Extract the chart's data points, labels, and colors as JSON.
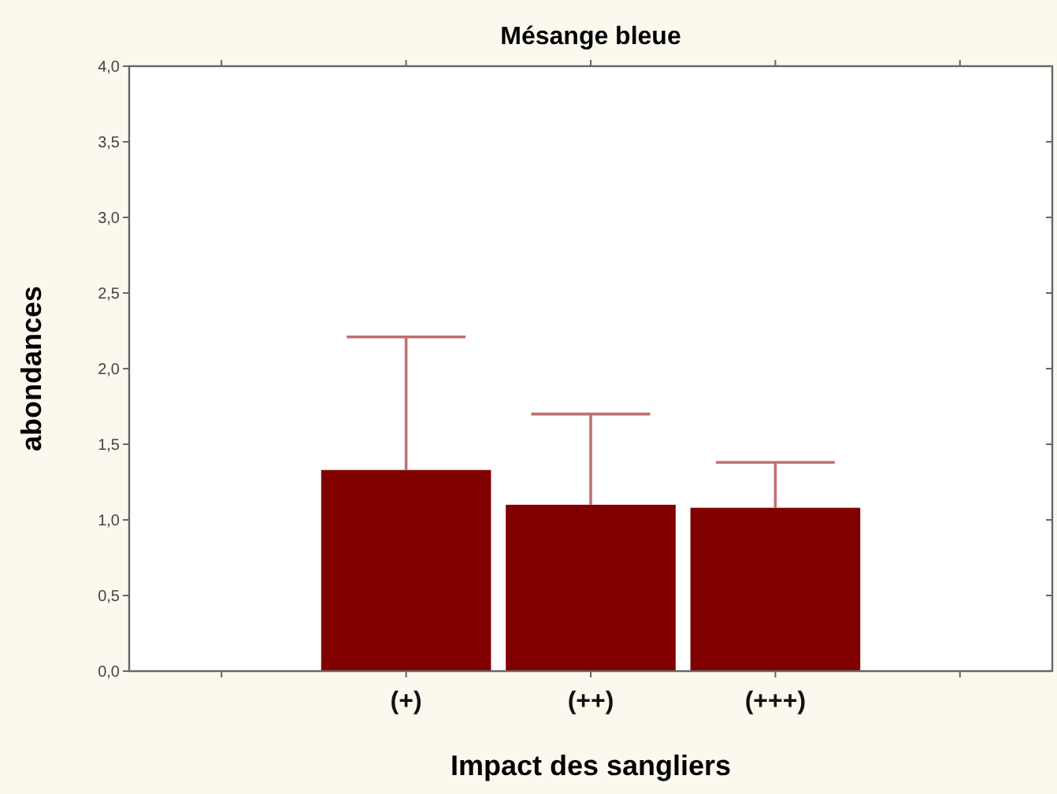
{
  "chart_data": {
    "type": "bar",
    "title": "Mésange bleue",
    "xlabel": "Impact des sangliers",
    "ylabel": "abondances",
    "categories": [
      null,
      "(+)",
      "(++)",
      "(+++)",
      null
    ],
    "values": [
      null,
      1.33,
      1.1,
      1.08,
      null
    ],
    "errors": [
      null,
      [
        1.33,
        2.21
      ],
      [
        1.1,
        1.7
      ],
      [
        1.08,
        1.38
      ],
      null
    ],
    "color": "#800000",
    "ylim": [
      0,
      4
    ],
    "yticks": [
      {
        "value": 0,
        "label": "0,0"
      },
      {
        "value": 0.5,
        "label": "0,5"
      },
      {
        "value": 1,
        "label": "1,0"
      },
      {
        "value": 1.5,
        "label": "1,5"
      },
      {
        "value": 2,
        "label": "2,0"
      },
      {
        "value": 2.5,
        "label": "2,5"
      },
      {
        "value": 3,
        "label": "3,0"
      },
      {
        "value": 3.5,
        "label": "3,5"
      },
      {
        "value": 4,
        "label": "4,0"
      }
    ],
    "grid": false
  }
}
